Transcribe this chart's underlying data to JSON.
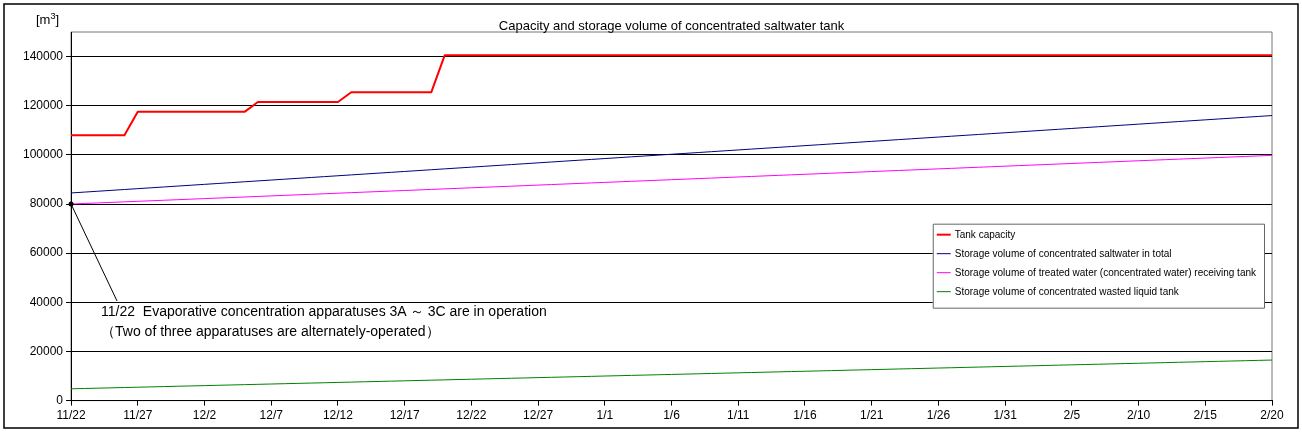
{
  "chart_data": {
    "type": "line",
    "title": "Capacity and storage volume of concentrated saltwater tank",
    "ylabel": "[m$^{3}$]",
    "categories": [
      "11/22",
      null,
      null,
      null,
      null,
      "11/27",
      null,
      null,
      null,
      null,
      "12/2",
      null,
      null,
      null,
      null,
      "12/7",
      null,
      null,
      null,
      null,
      "12/12",
      null,
      null,
      null,
      null,
      "12/17",
      null,
      null,
      null,
      null,
      "12/22",
      null,
      null,
      null,
      null,
      "12/27",
      null,
      null,
      null,
      null,
      "1/1",
      null,
      null,
      null,
      null,
      "1/6",
      null,
      null,
      null,
      null,
      "1/11",
      null,
      null,
      null,
      null,
      "1/16",
      null,
      null,
      null,
      null,
      "1/21",
      null,
      null,
      null,
      null,
      "1/26",
      null,
      null,
      null,
      null,
      "1/31",
      null,
      null,
      null,
      null,
      "2/5",
      null,
      null,
      null,
      null,
      "2/10",
      null,
      null,
      null,
      null,
      "2/15",
      null,
      null,
      null,
      null,
      "2/20"
    ],
    "series": [
      {
        "name": "Tank capacity",
        "color": "#ff0000",
        "values": [
          108000,
          108000,
          108000,
          108000,
          108000,
          117500,
          117500,
          117500,
          117500,
          117500,
          117500,
          117500,
          117500,
          117500,
          121500,
          121500,
          121500,
          121500,
          121500,
          121500,
          121500,
          125500,
          125500,
          125500,
          125500,
          125500,
          125500,
          125500,
          140500,
          140500,
          140500,
          140500,
          140500,
          140500,
          140500,
          140500,
          140500,
          140500,
          140500,
          140500,
          140500,
          140500,
          140500,
          140500,
          140500,
          140500,
          140500,
          140500,
          140500,
          140500,
          140500,
          140500,
          140500,
          140500,
          140500,
          140500,
          140500,
          140500,
          140500,
          140500,
          140500,
          140500,
          140500,
          140500,
          140500,
          140500,
          140500,
          140500,
          140500,
          140500,
          140500,
          140500,
          140500,
          140500,
          140500,
          140500,
          140500,
          140500,
          140500,
          140500,
          140500,
          140500,
          140500,
          140500,
          140500,
          140500,
          140500,
          140500,
          140500,
          140500,
          140500
        ]
      },
      {
        "name": "Storage volume of concentrated saltwater in total",
        "color": "#000080",
        "values": [
          84500,
          84850,
          85200,
          85550,
          85900,
          86250,
          86600,
          86950,
          87300,
          87650,
          88000,
          88350,
          88700,
          89050,
          89400,
          89750,
          90100,
          90450,
          90800,
          91150,
          91500,
          91850,
          92200,
          92550,
          92900,
          93250,
          93600,
          93950,
          94300,
          94650,
          95000,
          95350,
          95700,
          96050,
          96400,
          96750,
          97100,
          97450,
          97800,
          98150,
          98500,
          98850,
          99200,
          99550,
          99900,
          100250,
          100600,
          100950,
          101300,
          101650,
          102000,
          102350,
          102700,
          103050,
          103400,
          103750,
          104100,
          104450,
          104800,
          105150,
          105500,
          105850,
          106200,
          106550,
          106900,
          107250,
          107600,
          107950,
          108300,
          108650,
          109000,
          109350,
          109700,
          110050,
          110400,
          110750,
          111100,
          111450,
          111800,
          112150,
          112500,
          112850,
          113200,
          113550,
          113900,
          114250,
          114600,
          114950,
          115300,
          115650,
          116000
        ]
      },
      {
        "name": "Storage volume of treated water (concentrated water) receiving tank",
        "color": "#ff00ff",
        "values": [
          80000,
          80220,
          80440,
          80660,
          80880,
          81100,
          81320,
          81540,
          81760,
          81980,
          82200,
          82420,
          82640,
          82860,
          83080,
          83300,
          83520,
          83740,
          83960,
          84180,
          84400,
          84620,
          84840,
          85060,
          85280,
          85500,
          85720,
          85940,
          86160,
          86380,
          86600,
          86820,
          87040,
          87260,
          87480,
          87700,
          87920,
          88140,
          88360,
          88580,
          88800,
          89020,
          89240,
          89460,
          89680,
          89900,
          90120,
          90340,
          90560,
          90780,
          91000,
          91220,
          91440,
          91660,
          91880,
          92100,
          92320,
          92540,
          92760,
          92980,
          93200,
          93420,
          93640,
          93860,
          94080,
          94300,
          94520,
          94740,
          94960,
          95180,
          95400,
          95620,
          95840,
          96060,
          96280,
          96500,
          96720,
          96940,
          97160,
          97380,
          97600,
          97820,
          98040,
          98260,
          98480,
          98700,
          98920,
          99140,
          99360,
          99580,
          99800
        ]
      },
      {
        "name": "Storage volume of concentrated wasted liquid tank",
        "color": "#008000",
        "values": [
          4800,
          4930,
          5060,
          5190,
          5320,
          5450,
          5580,
          5710,
          5840,
          5970,
          6100,
          6230,
          6360,
          6490,
          6620,
          6750,
          6880,
          7010,
          7140,
          7270,
          7400,
          7530,
          7660,
          7790,
          7920,
          8050,
          8180,
          8310,
          8440,
          8570,
          8700,
          8830,
          8960,
          9090,
          9220,
          9350,
          9480,
          9610,
          9740,
          9870,
          10000,
          10130,
          10260,
          10390,
          10520,
          10650,
          10780,
          10910,
          11040,
          11170,
          11300,
          11430,
          11560,
          11690,
          11820,
          11950,
          12080,
          12210,
          12340,
          12470,
          12600,
          12730,
          12860,
          12990,
          13120,
          13250,
          13380,
          13510,
          13640,
          13770,
          13900,
          14030,
          14160,
          14290,
          14420,
          14550,
          14680,
          14810,
          14940,
          15070,
          15200,
          15330,
          15460,
          15590,
          15720,
          15850,
          15980,
          16110,
          16240,
          16370,
          16500
        ]
      }
    ],
    "ylim": [
      0,
      150000
    ],
    "yticks": [
      0,
      20000,
      40000,
      60000,
      80000,
      100000,
      120000,
      140000
    ],
    "grid": "y",
    "legend": "right",
    "marker": "none",
    "line_style": "solid",
    "annotations": [
      {
        "text": "11/22  Evaporative concentration apparatuses 3A ～ 3C are in operation\n（Two of three apparatuses are alternately-operated）",
        "x": "11/22",
        "y": 80000
      }
    ]
  }
}
